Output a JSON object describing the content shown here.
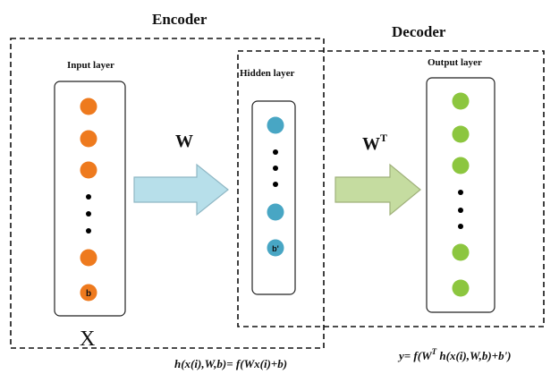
{
  "encoder": {
    "title": "Encoder"
  },
  "decoder": {
    "title": "Decoder"
  },
  "input_layer": {
    "label": "Input layer",
    "bias_label": "b",
    "symbol": "X"
  },
  "hidden_layer": {
    "label": "Hidden layer",
    "bias_label": "b'"
  },
  "output_layer": {
    "label": "Output layer"
  },
  "arrows": {
    "encoder_weight": "W",
    "decoder_weight_base": "W",
    "decoder_weight_sup": "T"
  },
  "formulas": {
    "encoder": "h(x(i),W,b)= f(Wx(i)+b)",
    "decoder_pre": "y= f(W",
    "decoder_sup": "T",
    "decoder_post": " h(x(i),W,b)+b')"
  },
  "colors": {
    "input_node": "#ee7a1e",
    "hidden_node": "#48a6c4",
    "output_node": "#8cc63f",
    "encoder_arrow": "#b7dfea",
    "decoder_arrow": "#c5dca0"
  }
}
